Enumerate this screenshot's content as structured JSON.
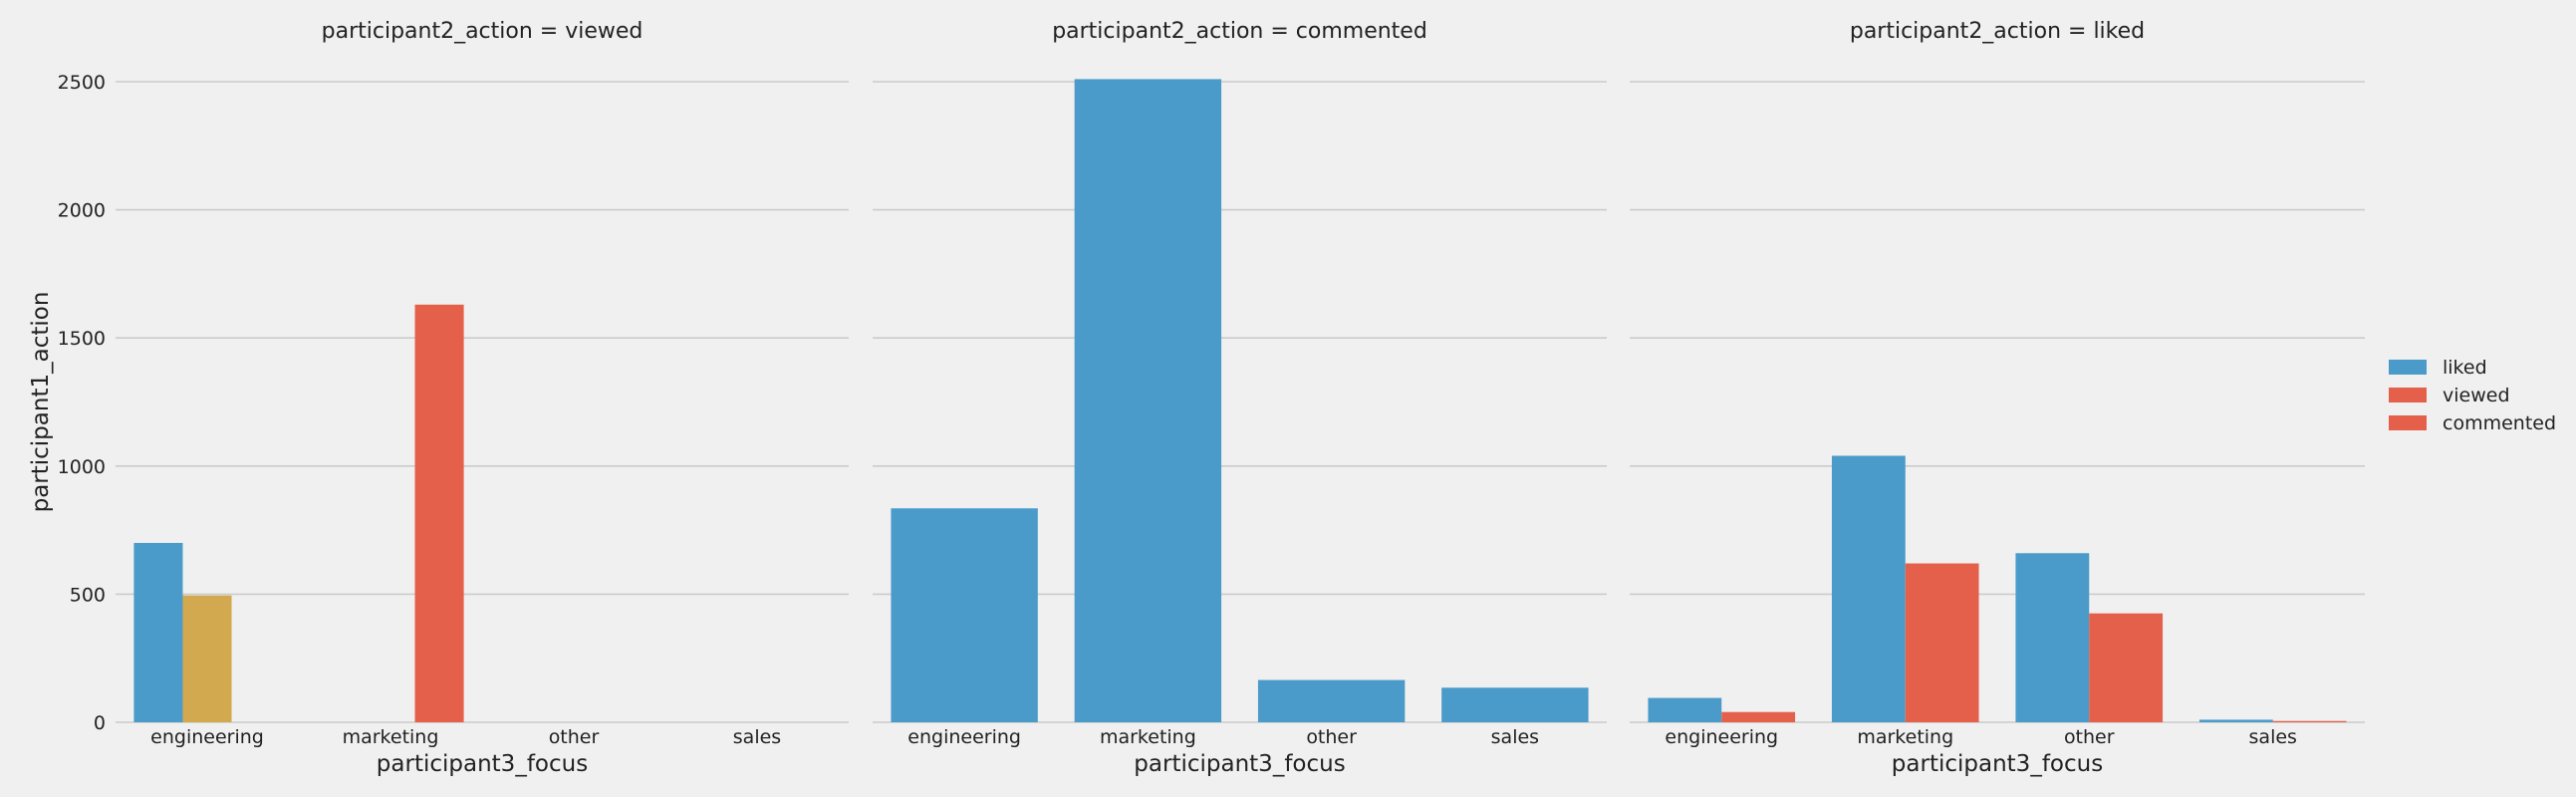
{
  "chart_data": {
    "type": "bar",
    "facet_variable": "participant2_action",
    "categories": [
      "engineering",
      "marketing",
      "other",
      "sales"
    ],
    "xlabel": "participant3_focus",
    "ylabel": "participant1_action",
    "ylim": [
      0,
      2500
    ],
    "yticks": [
      0,
      500,
      1000,
      1500,
      2000,
      2500
    ],
    "grid": true,
    "legend_position": "right",
    "legend": [
      {
        "name": "liked",
        "color": "#4a9bc9"
      },
      {
        "name": "viewed",
        "color": "#e5604b"
      },
      {
        "name": "commented",
        "color": "#e5604b"
      }
    ],
    "panels": [
      {
        "title": "participant2_action = viewed",
        "bars": [
          {
            "category": "engineering",
            "series": "liked",
            "value": 700,
            "color": "#4a9bc9"
          },
          {
            "category": "engineering",
            "value": 495,
            "color": "#d3a94f"
          },
          {
            "category": "marketing",
            "value": 1630,
            "color": "#e5604b"
          }
        ]
      },
      {
        "title": "participant2_action = commented",
        "bars": [
          {
            "category": "engineering",
            "series": "liked",
            "value": 835,
            "color": "#4a9bc9"
          },
          {
            "category": "marketing",
            "series": "liked",
            "value": 2510,
            "color": "#4a9bc9"
          },
          {
            "category": "other",
            "series": "liked",
            "value": 165,
            "color": "#4a9bc9"
          },
          {
            "category": "sales",
            "series": "liked",
            "value": 135,
            "color": "#4a9bc9"
          }
        ]
      },
      {
        "title": "participant2_action = liked",
        "bars": [
          {
            "category": "engineering",
            "series": "liked",
            "value": 95,
            "color": "#4a9bc9"
          },
          {
            "category": "engineering",
            "series": "viewed",
            "value": 40,
            "color": "#e5604b"
          },
          {
            "category": "marketing",
            "series": "liked",
            "value": 1040,
            "color": "#4a9bc9"
          },
          {
            "category": "marketing",
            "series": "viewed",
            "value": 620,
            "color": "#e5604b"
          },
          {
            "category": "other",
            "series": "liked",
            "value": 660,
            "color": "#4a9bc9"
          },
          {
            "category": "other",
            "series": "viewed",
            "value": 425,
            "color": "#e5604b"
          },
          {
            "category": "sales",
            "series": "liked",
            "value": 10,
            "color": "#4a9bc9"
          },
          {
            "category": "sales",
            "series": "viewed",
            "value": 5,
            "color": "#e5604b"
          }
        ]
      }
    ]
  }
}
